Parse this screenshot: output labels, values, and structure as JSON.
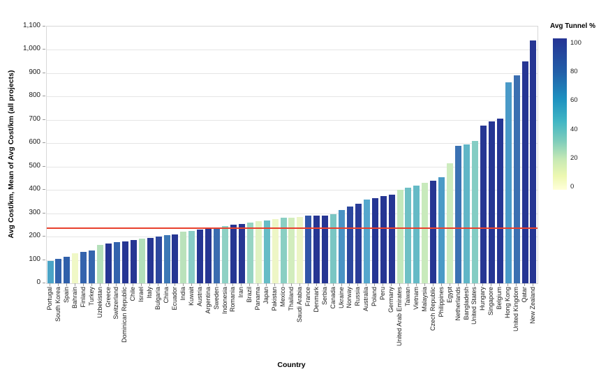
{
  "y_axis": {
    "title": "Avg Cost/km, Mean of Avg Cost/km (all projects)",
    "tick_labels": [
      "0",
      "100",
      "200",
      "300",
      "400",
      "500",
      "600",
      "700",
      "800",
      "900",
      "1,000",
      "1,100"
    ],
    "max": 1100
  },
  "x_axis": {
    "title": "Country"
  },
  "legend": {
    "title": "Avg Tunnel %",
    "tick_labels": [
      "100",
      "80",
      "60",
      "40",
      "20",
      "0"
    ]
  },
  "reference_line": {
    "value": 237,
    "color": "#e8402d"
  },
  "chart_data": {
    "type": "bar",
    "title": "",
    "xlabel": "Country",
    "ylabel": "Avg Cost/km, Mean of Avg Cost/km (all projects)",
    "ylim": [
      0,
      1100
    ],
    "grid": "horizontal",
    "legend_position": "top-right",
    "color_scale": {
      "title": "Avg Tunnel %",
      "min": 0,
      "max": 100,
      "palette_low_to_high": [
        "#ffffd9",
        "#edf8b1",
        "#c7e9b4",
        "#7fcdbb",
        "#41b6c4",
        "#1d91c0",
        "#225ea8",
        "#253494"
      ]
    },
    "mean_reference_value": 237,
    "categories": [
      "Portugal",
      "South Korea",
      "Spain",
      "Bahrain",
      "Finland",
      "Turkey",
      "Uzbekistan",
      "Greece",
      "Switzerland",
      "Dominican Republic",
      "Chile",
      "Israel",
      "Italy",
      "Bulgaria",
      "China",
      "Ecuador",
      "India",
      "Kuwait",
      "Austria",
      "Argentina",
      "Sweden",
      "Indonesia",
      "Romania",
      "Iran",
      "Brazil",
      "Panama",
      "Japan",
      "Pakistan",
      "Mexico",
      "Thailand",
      "Saudi Arabia",
      "France",
      "Denmark",
      "Serbia",
      "Canada",
      "Ukraine",
      "Norway",
      "Russia",
      "Australia",
      "Poland",
      "Peru",
      "Germany",
      "United Arab Emirates",
      "Taiwan",
      "Vietnam",
      "Malaysia",
      "Czech Republic",
      "Philippines",
      "Egypt",
      "Netherlands",
      "Bangladesh",
      "United States",
      "Hungary",
      "Singapore",
      "Belgium",
      "Hong Kong",
      "United Kingdom",
      "Qatar",
      "New Zealand"
    ],
    "values": [
      95,
      105,
      115,
      130,
      135,
      140,
      165,
      170,
      175,
      180,
      185,
      190,
      195,
      200,
      205,
      210,
      220,
      225,
      230,
      235,
      240,
      245,
      250,
      255,
      260,
      265,
      270,
      275,
      280,
      280,
      285,
      290,
      290,
      290,
      295,
      315,
      330,
      340,
      360,
      365,
      375,
      380,
      400,
      410,
      420,
      430,
      440,
      455,
      515,
      590,
      595,
      610,
      675,
      695,
      705,
      860,
      890,
      950,
      1040
    ],
    "bar_colors": [
      "#4ba4c6",
      "#3363ad",
      "#3060aa",
      "#f0f8c6",
      "#3363ad",
      "#3565ae",
      "#b5e0ba",
      "#263693",
      "#3363ad",
      "#263693",
      "#263693",
      "#b2dfba",
      "#263693",
      "#2c479e",
      "#3c78b6",
      "#263693",
      "#bae2bb",
      "#8acdc6",
      "#263693",
      "#263693",
      "#3a6cb0",
      "#8ed1c4",
      "#263693",
      "#263693",
      "#96d4c3",
      "#e0f2c2",
      "#66bcc6",
      "#eef6c6",
      "#8acfc3",
      "#d2edbd",
      "#ecf5c5",
      "#3156a8",
      "#263693",
      "#263693",
      "#7ac6c3",
      "#4a93c4",
      "#2c479e",
      "#293c98",
      "#55a7cd",
      "#263693",
      "#263693",
      "#263693",
      "#c4e8bc",
      "#6fc0c5",
      "#65bac6",
      "#c8eabc",
      "#263693",
      "#4a9ac6",
      "#cdecbe",
      "#3b72b3",
      "#60b6c7",
      "#84cdc4",
      "#263693",
      "#263693",
      "#263693",
      "#4a9ac8",
      "#3b6fb1",
      "#263693",
      "#263693"
    ]
  }
}
